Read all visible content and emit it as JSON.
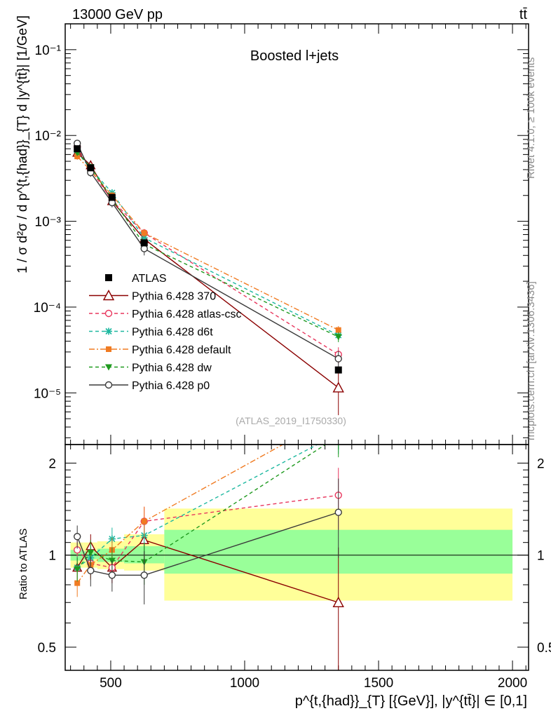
{
  "header": {
    "left_label": "13000 GeV pp",
    "right_label": "tt̄"
  },
  "side_labels": {
    "rivet": "Rivet 4.1.0, ≥ 100k events",
    "mcplots": "mcplots.cern.ch [arXiv:1306.3436]"
  },
  "chart_data": [
    {
      "type": "line",
      "role": "main",
      "title": "Boosted l+jets",
      "analysis_tag": "(ATLAS_2019_I1750330)",
      "ylabel": "1 / σ d²σ / d p^{t,{had}}_{T} d |y^{tt̄}| [1/GeV]",
      "yscale": "log",
      "ylim": [
        2.5e-06,
        0.2
      ],
      "xlim": [
        330,
        2060
      ],
      "y_ticks": [
        {
          "v": 1e-05,
          "label": "10^-5"
        },
        {
          "v": 0.0001,
          "label": "10^-4"
        },
        {
          "v": 0.001,
          "label": "10^-3"
        },
        {
          "v": 0.01,
          "label": "10^-2"
        },
        {
          "v": 0.1,
          "label": "10^-1"
        }
      ],
      "x": [
        375,
        425,
        505,
        625,
        1350
      ],
      "x_edges": [
        350,
        400,
        450,
        550,
        700,
        2000
      ],
      "data": {
        "name": "ATLAS",
        "values": [
          0.007,
          0.0042,
          0.0019,
          0.00056,
          1.85e-05
        ]
      },
      "series": [
        {
          "name": "Pythia 6.428 370",
          "color": "#8b0000",
          "marker": "triangle-open",
          "dash": "",
          "values": [
            0.0063,
            0.0045,
            0.00172,
            0.00062,
            1.15e-05
          ],
          "errors": [
            0.0006,
            0.0004,
            0.0002,
            8e-05,
            6e-06
          ]
        },
        {
          "name": "Pythia 6.428 atlas-csc",
          "color": "#e8365d",
          "marker": "circle-open",
          "dash": "5,4",
          "values": [
            0.0074,
            0.004,
            0.00175,
            0.00073,
            2.8e-05
          ],
          "errors": [
            0.0005,
            0.0004,
            0.0002,
            8e-05,
            6e-06
          ]
        },
        {
          "name": "Pythia 6.428 d6t",
          "color": "#1db8a0",
          "marker": "star",
          "dash": "5,4",
          "values": [
            0.0064,
            0.0041,
            0.00215,
            0.00064,
            4.7e-05
          ],
          "errors": [
            0.0005,
            0.0004,
            0.0002,
            8e-05,
            6e-06
          ]
        },
        {
          "name": "Pythia 6.428 default",
          "color": "#f07b22",
          "marker": "square",
          "dash": "8,3,2,3",
          "values": [
            0.0057,
            0.0039,
            0.002,
            0.00073,
            5.4e-05
          ],
          "errors": [
            0.0005,
            0.0004,
            0.0002,
            8e-05,
            6e-06
          ]
        },
        {
          "name": "Pythia 6.428 dw",
          "color": "#1f9a1f",
          "marker": "triangle-down",
          "dash": "5,4",
          "values": [
            0.0063,
            0.0043,
            0.00182,
            0.00054,
            4.5e-05
          ],
          "errors": [
            0.0005,
            0.0004,
            0.0002,
            8e-05,
            6e-06
          ]
        },
        {
          "name": "Pythia 6.428 p0",
          "color": "#3a3a3a",
          "marker": "circle-open",
          "dash": "",
          "values": [
            0.0081,
            0.0037,
            0.00165,
            0.00048,
            2.5e-05
          ],
          "errors": [
            0.0006,
            0.0004,
            0.0002,
            8e-05,
            6e-06
          ]
        }
      ]
    },
    {
      "type": "line",
      "role": "ratio",
      "ylabel": "Ratio to ATLAS",
      "xlabel": "p^{t,{had}}_{T} [{GeV}], |y^{tt̄}| ∈ [0,1]",
      "yscale": "log",
      "ylim": [
        0.42,
        2.3
      ],
      "xlim": [
        330,
        2060
      ],
      "x_ticks": [
        500,
        1000,
        1500,
        2000
      ],
      "y_ticks": [
        0.5,
        1,
        2
      ],
      "x": [
        375,
        425,
        505,
        625,
        1350
      ],
      "x_edges": [
        350,
        400,
        450,
        550,
        700,
        2000
      ],
      "band_stat": [
        [
          0.96,
          1.04
        ],
        [
          0.97,
          1.03
        ],
        [
          0.95,
          1.05
        ],
        [
          0.94,
          1.07
        ],
        [
          0.87,
          1.21
        ]
      ],
      "band_total": [
        [
          0.91,
          1.1
        ],
        [
          0.91,
          1.1
        ],
        [
          0.9,
          1.11
        ],
        [
          0.89,
          1.17
        ],
        [
          0.71,
          1.42
        ]
      ],
      "series": [
        {
          "name": "Pythia 6.428 370",
          "values": [
            0.91,
            1.07,
            0.91,
            1.12,
            0.7
          ],
          "errors": [
            0.08,
            0.1,
            0.1,
            0.15,
            0.36
          ]
        },
        {
          "name": "Pythia 6.428 atlas-csc",
          "values": [
            1.04,
            0.94,
            0.91,
            1.29,
            1.57
          ],
          "errors": [
            0.08,
            0.1,
            0.1,
            0.15,
            0.36
          ]
        },
        {
          "name": "Pythia 6.428 d6t",
          "values": [
            0.91,
            0.98,
            1.13,
            1.16,
            2.5
          ],
          "errors": [
            0.08,
            0.1,
            0.1,
            0.15,
            0.36
          ]
        },
        {
          "name": "Pythia 6.428 default",
          "values": [
            0.81,
            0.93,
            1.04,
            1.29,
            2.9
          ],
          "errors": [
            0.08,
            0.1,
            0.1,
            0.15,
            0.36
          ]
        },
        {
          "name": "Pythia 6.428 dw",
          "values": [
            0.9,
            1.02,
            0.96,
            0.95,
            2.45
          ],
          "errors": [
            0.08,
            0.1,
            0.1,
            0.15,
            0.36
          ]
        },
        {
          "name": "Pythia 6.428 p0",
          "values": [
            1.15,
            0.89,
            0.86,
            0.86,
            1.38
          ],
          "errors": [
            0.1,
            0.1,
            0.1,
            0.17,
            0.4
          ]
        }
      ]
    }
  ]
}
